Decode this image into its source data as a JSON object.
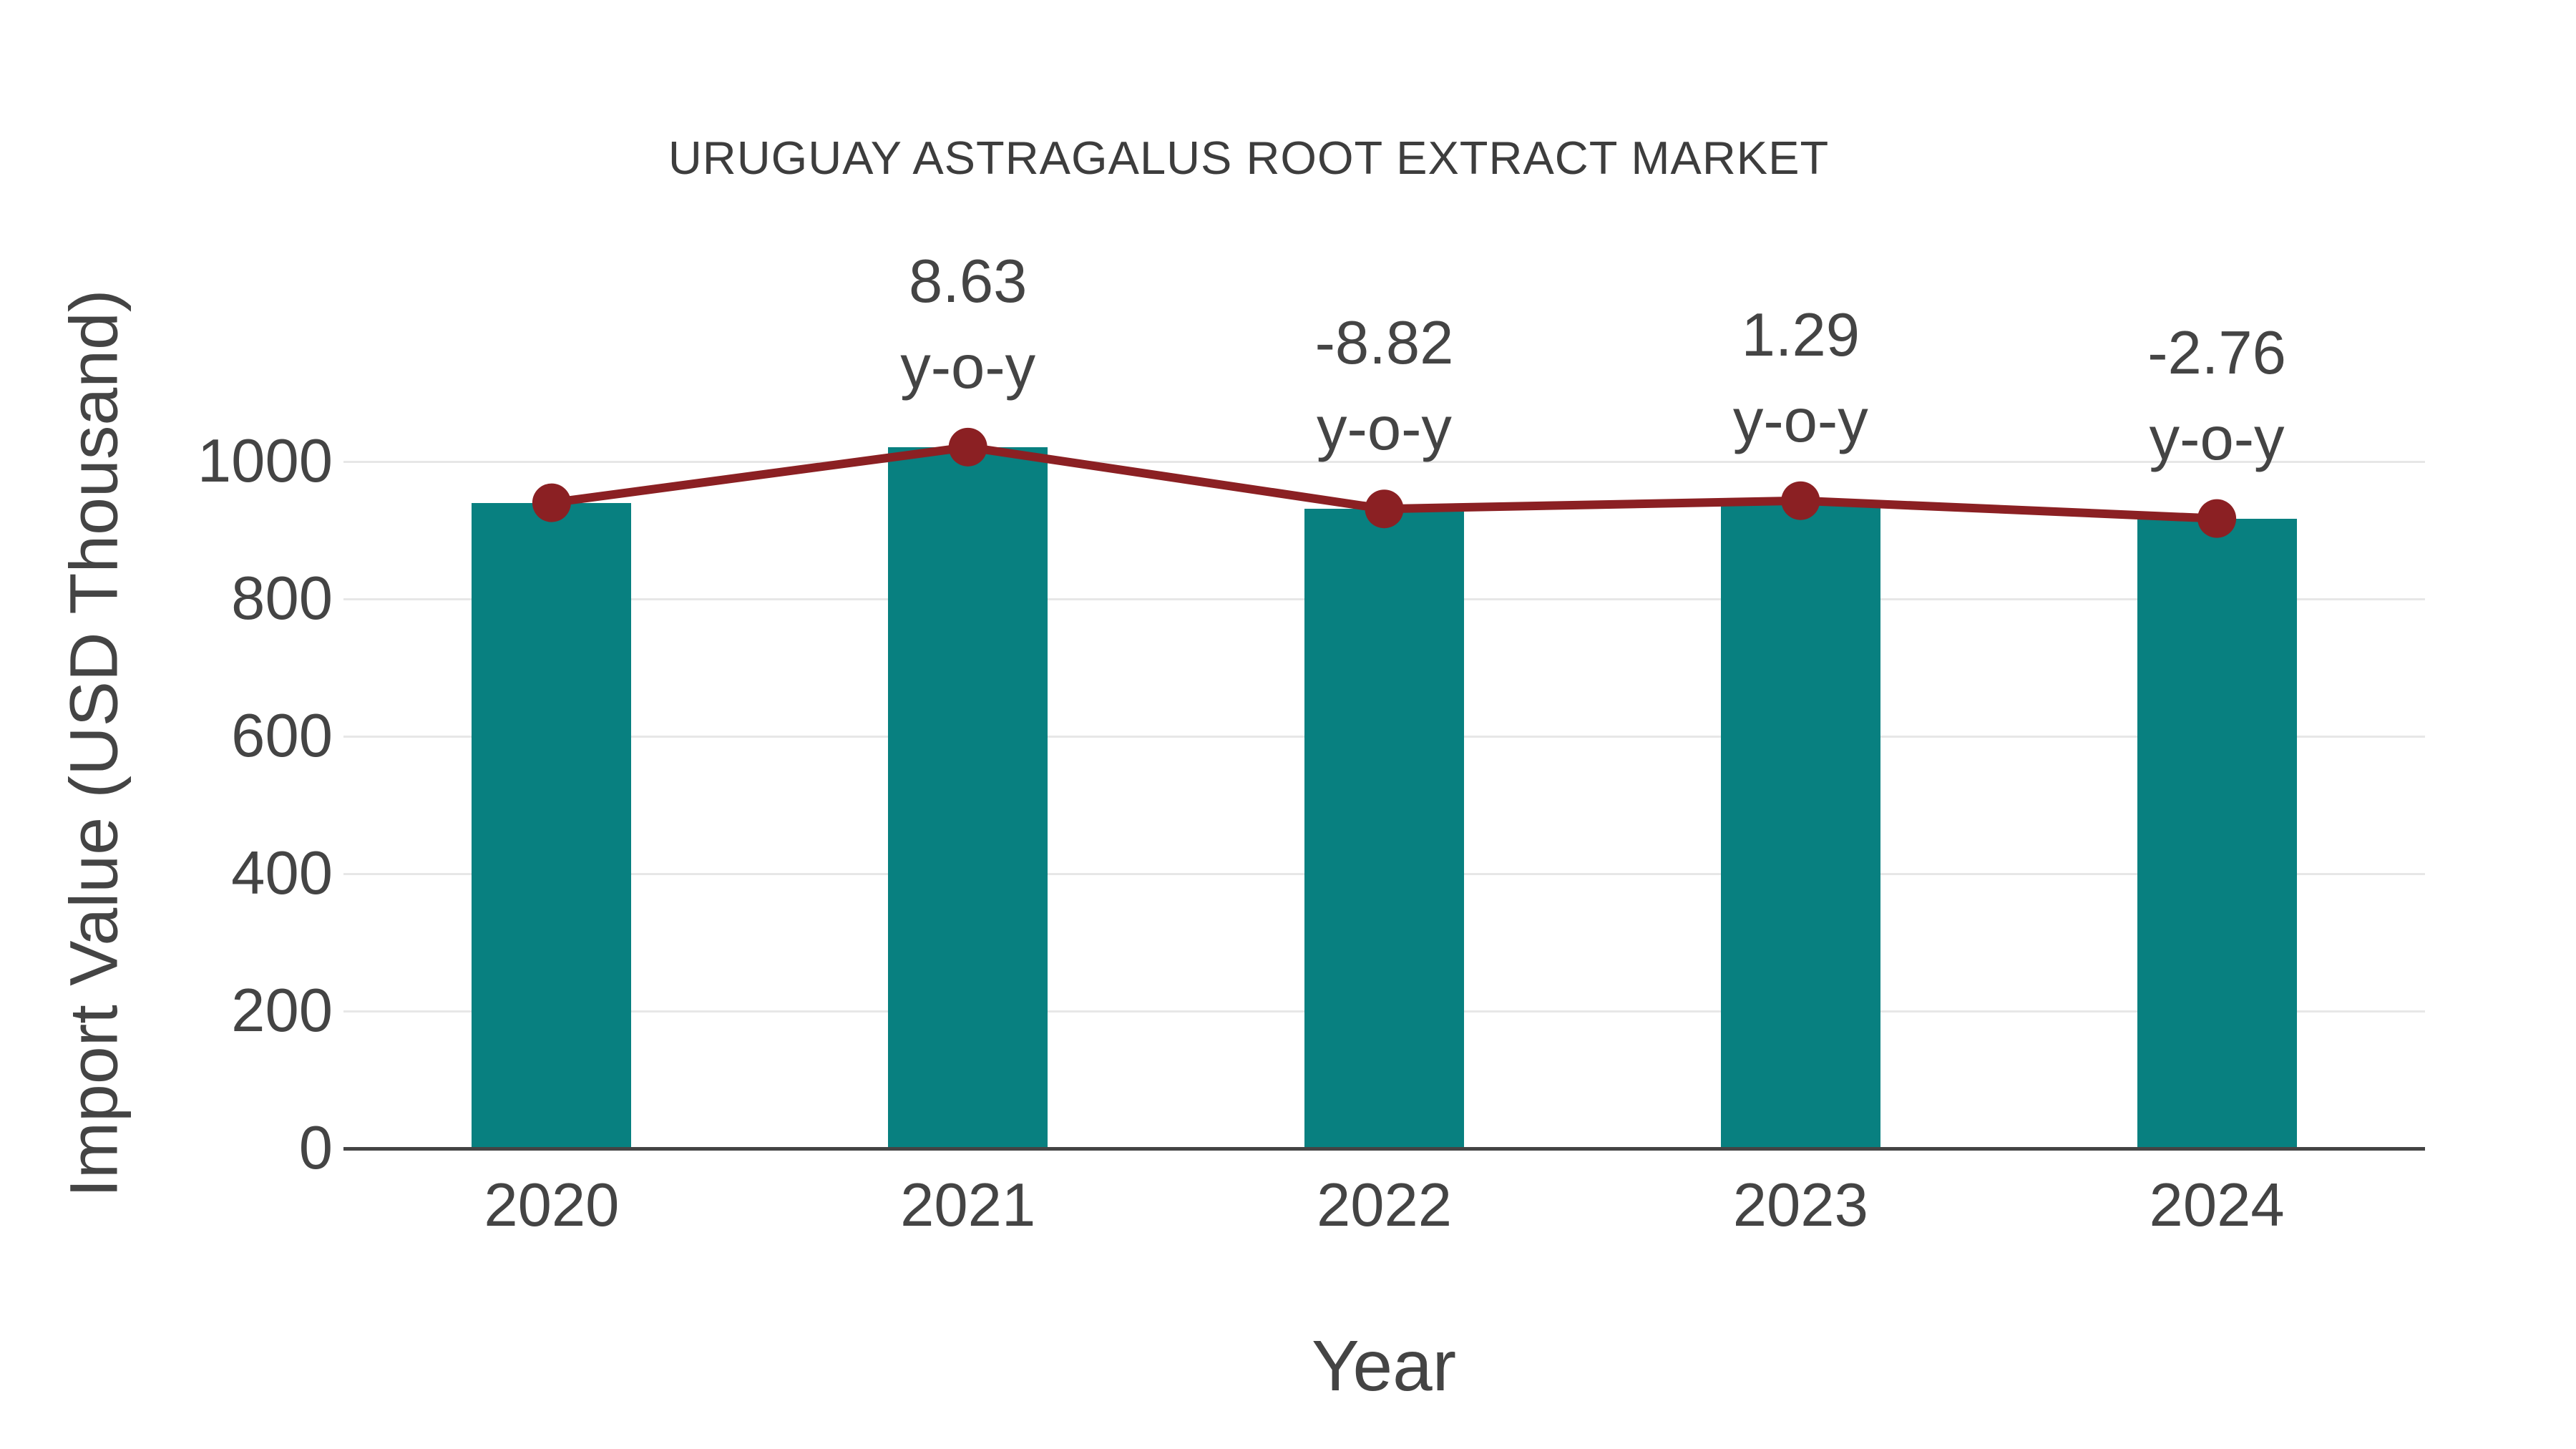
{
  "title": "URUGUAY ASTRAGALUS ROOT EXTRACT MARKET",
  "chart_data": {
    "type": "bar",
    "categories": [
      "2020",
      "2021",
      "2022",
      "2023",
      "2024"
    ],
    "series": [
      {
        "name": "import-value-bars",
        "type": "bar",
        "values": [
          940,
          1021,
          931,
          943,
          917
        ]
      },
      {
        "name": "import-value-trend-line",
        "type": "line",
        "values": [
          940,
          1021,
          931,
          943,
          917
        ]
      }
    ],
    "annotations": [
      {
        "category": "2021",
        "value": "8.63",
        "suffix": "y-o-y"
      },
      {
        "category": "2022",
        "value": "-8.82",
        "suffix": "y-o-y"
      },
      {
        "category": "2023",
        "value": "1.29",
        "suffix": "y-o-y"
      },
      {
        "category": "2024",
        "value": "-2.76",
        "suffix": "y-o-y"
      }
    ],
    "title": "URUGUAY ASTRAGALUS ROOT EXTRACT MARKET",
    "xlabel": "Year",
    "ylabel": "Import Value (USD Thousand)",
    "yticks": [
      0,
      200,
      400,
      600,
      800,
      1000
    ],
    "ylim": [
      0,
      1150
    ],
    "grid": "horizontal",
    "legend": "none",
    "colors": {
      "bar": "#088080",
      "line": "#8B2023",
      "text": "#444444",
      "title_text": "#3d3d3d",
      "grid": "#e7e7e7",
      "axis": "#444444",
      "background": "#ffffff"
    }
  }
}
